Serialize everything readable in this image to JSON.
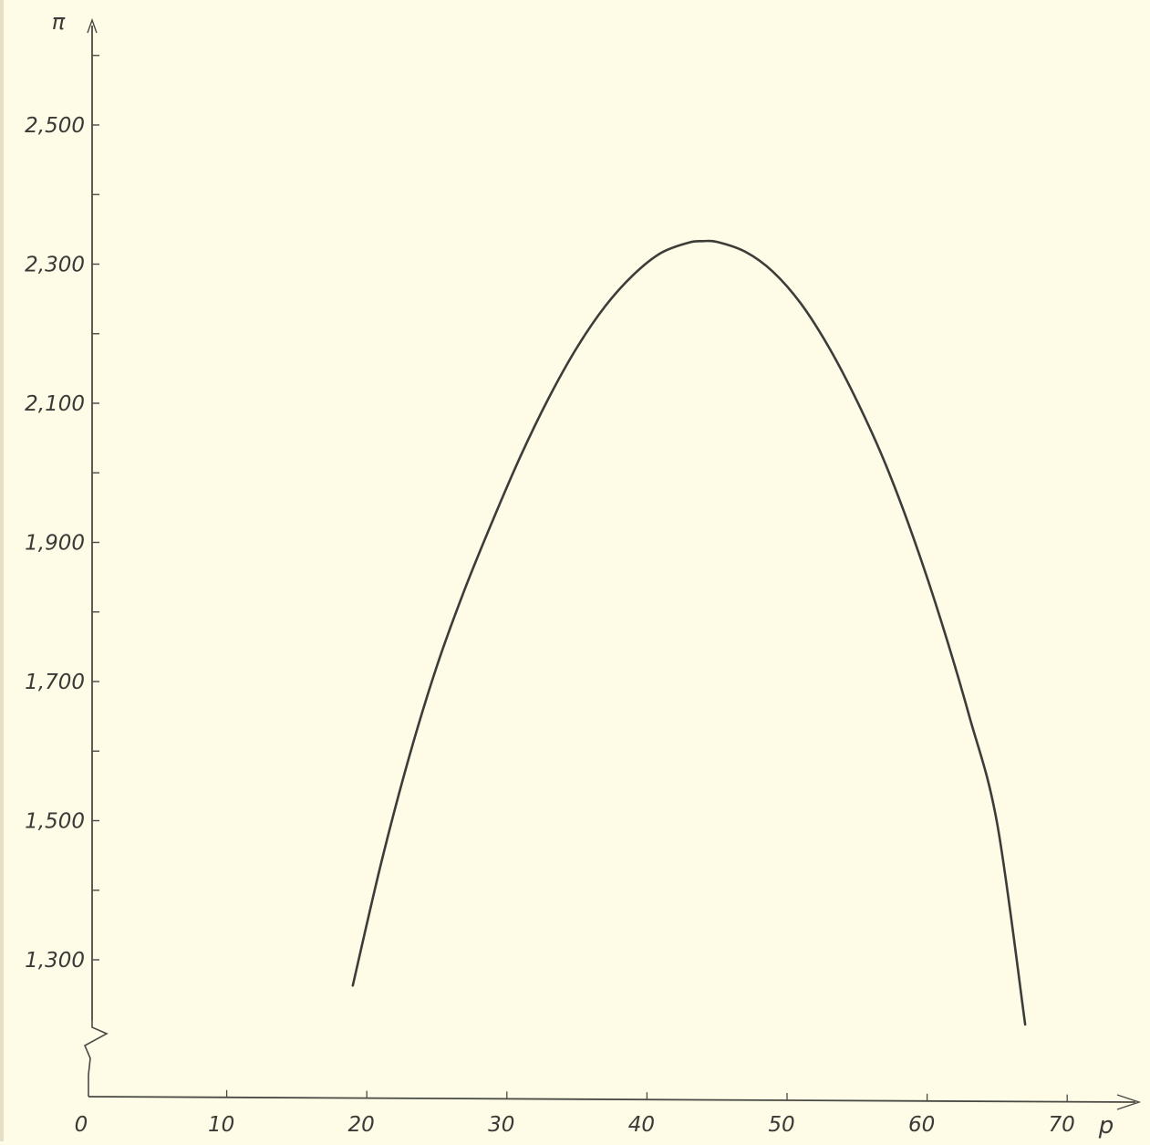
{
  "chart_data": {
    "type": "line",
    "title": "",
    "xlabel": "p",
    "ylabel": "π",
    "xlim": [
      0,
      75
    ],
    "ylim": [
      1140,
      2700
    ],
    "y_axis_break": true,
    "grid": false,
    "x_ticks": [
      0,
      10,
      20,
      30,
      40,
      50,
      60,
      70
    ],
    "x_tick_labels": [
      "0",
      "10",
      "20",
      "30",
      "40",
      "50",
      "60",
      "70"
    ],
    "y_ticks": [
      1300,
      1400,
      1500,
      1600,
      1700,
      1800,
      1900,
      2000,
      2100,
      2200,
      2300,
      2400,
      2500,
      2600
    ],
    "y_labeled_ticks": [
      1300,
      1500,
      1700,
      1900,
      2100,
      2300,
      2500
    ],
    "y_tick_labels": [
      "1,300",
      "1,500",
      "1,700",
      "1,900",
      "2,100",
      "2,300",
      "2,500"
    ],
    "series": [
      {
        "x": [
          19,
          21,
          23,
          25,
          27,
          29,
          31,
          33,
          35,
          37,
          39,
          41,
          43,
          44,
          45,
          47,
          49,
          51,
          53,
          55,
          57,
          59,
          61,
          63,
          65,
          67
        ],
        "y": [
          1263,
          1437,
          1590,
          1722,
          1833,
          1932,
          2025,
          2108,
          2180,
          2239,
          2284,
          2316,
          2331,
          2333,
          2332,
          2318,
          2289,
          2243,
          2180,
          2103,
          2014,
          1908,
          1787,
          1651,
          1496,
          1207
        ]
      }
    ]
  }
}
